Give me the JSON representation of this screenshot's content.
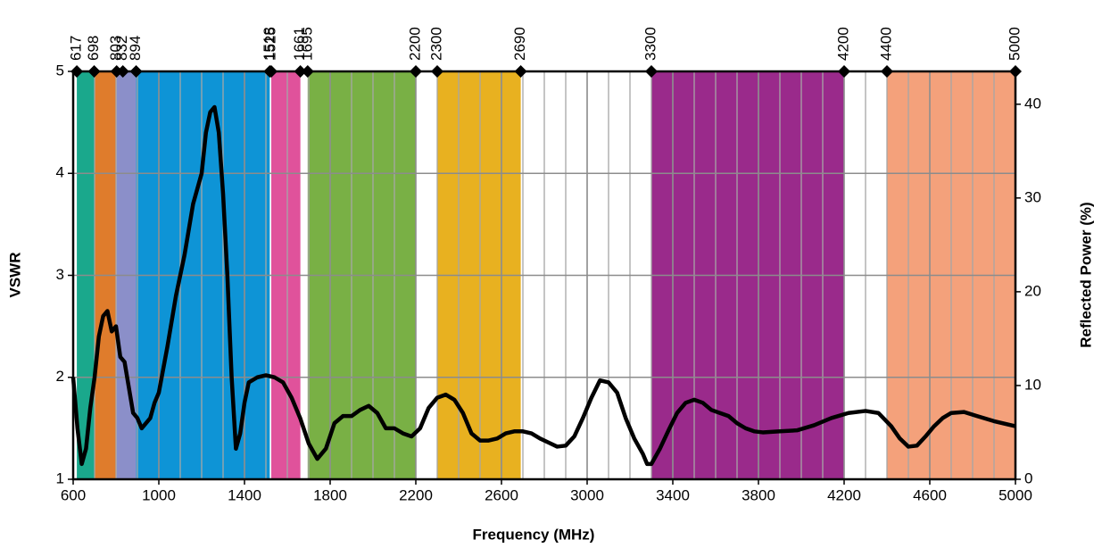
{
  "chart_data": {
    "type": "line",
    "xlabel": "Frequency (MHz)",
    "ylabel": "VSWR",
    "y2label": "Reflected Power (%)",
    "xlim": [
      600,
      5000
    ],
    "xticks": [
      600,
      1000,
      1400,
      1800,
      2200,
      2600,
      3000,
      3400,
      3800,
      4200,
      4600,
      5000
    ],
    "ylim": [
      1,
      5
    ],
    "yticks": [
      1,
      2,
      3,
      4,
      5
    ],
    "y2lim": [
      0,
      43.5
    ],
    "y2ticks": [
      0,
      10,
      20,
      30,
      40
    ],
    "grid": true,
    "xgrid_minor": 100,
    "markers": [
      617,
      698,
      803,
      832,
      894,
      1518,
      1525,
      1661,
      1695,
      2200,
      2300,
      2690,
      3300,
      4200,
      4400,
      5000
    ],
    "bands": [
      {
        "start": 617,
        "end": 698,
        "color": "#1aa88c"
      },
      {
        "start": 698,
        "end": 803,
        "color": "#df7c2c"
      },
      {
        "start": 803,
        "end": 894,
        "color": "#8b8fc9"
      },
      {
        "start": 894,
        "end": 1518,
        "color": "#0e94d6"
      },
      {
        "start": 1525,
        "end": 1661,
        "color": "#e0529b"
      },
      {
        "start": 1695,
        "end": 2200,
        "color": "#79b045"
      },
      {
        "start": 2300,
        "end": 2690,
        "color": "#e8b120"
      },
      {
        "start": 3300,
        "end": 4200,
        "color": "#9a2a8b"
      },
      {
        "start": 4400,
        "end": 5000,
        "color": "#f4a17b"
      }
    ],
    "x": [
      600,
      620,
      640,
      660,
      680,
      700,
      720,
      740,
      760,
      780,
      800,
      820,
      840,
      860,
      880,
      900,
      920,
      940,
      960,
      980,
      1000,
      1040,
      1080,
      1120,
      1160,
      1200,
      1220,
      1240,
      1260,
      1280,
      1300,
      1320,
      1340,
      1360,
      1380,
      1400,
      1420,
      1460,
      1500,
      1540,
      1580,
      1620,
      1660,
      1700,
      1740,
      1780,
      1820,
      1860,
      1900,
      1940,
      1980,
      2020,
      2060,
      2100,
      2140,
      2180,
      2220,
      2260,
      2300,
      2340,
      2380,
      2420,
      2460,
      2500,
      2540,
      2580,
      2620,
      2660,
      2700,
      2740,
      2780,
      2820,
      2860,
      2900,
      2940,
      2980,
      3020,
      3060,
      3100,
      3140,
      3180,
      3220,
      3260,
      3280,
      3300,
      3340,
      3380,
      3420,
      3460,
      3500,
      3540,
      3580,
      3620,
      3660,
      3700,
      3740,
      3780,
      3820,
      3900,
      3980,
      4060,
      4140,
      4220,
      4300,
      4360,
      4420,
      4460,
      4500,
      4540,
      4580,
      4620,
      4660,
      4700,
      4760,
      4820,
      4900,
      4960,
      5000
    ],
    "series": [
      {
        "color": "#000000",
        "values": [
          2.0,
          1.5,
          1.15,
          1.3,
          1.7,
          2.0,
          2.4,
          2.6,
          2.65,
          2.45,
          2.5,
          2.2,
          2.15,
          1.9,
          1.65,
          1.6,
          1.5,
          1.55,
          1.6,
          1.75,
          1.85,
          2.3,
          2.8,
          3.2,
          3.7,
          4.0,
          4.4,
          4.6,
          4.65,
          4.4,
          3.8,
          3.0,
          2.0,
          1.3,
          1.45,
          1.75,
          1.95,
          2.0,
          2.02,
          2.0,
          1.95,
          1.8,
          1.6,
          1.35,
          1.2,
          1.3,
          1.55,
          1.62,
          1.62,
          1.68,
          1.72,
          1.65,
          1.5,
          1.5,
          1.45,
          1.42,
          1.5,
          1.7,
          1.8,
          1.83,
          1.78,
          1.65,
          1.45,
          1.38,
          1.38,
          1.4,
          1.45,
          1.47,
          1.47,
          1.45,
          1.4,
          1.36,
          1.32,
          1.33,
          1.42,
          1.6,
          1.8,
          1.97,
          1.95,
          1.85,
          1.6,
          1.4,
          1.25,
          1.15,
          1.15,
          1.3,
          1.48,
          1.65,
          1.75,
          1.78,
          1.75,
          1.68,
          1.65,
          1.62,
          1.55,
          1.5,
          1.47,
          1.46,
          1.47,
          1.48,
          1.53,
          1.6,
          1.65,
          1.67,
          1.65,
          1.52,
          1.4,
          1.32,
          1.33,
          1.42,
          1.52,
          1.6,
          1.65,
          1.66,
          1.62,
          1.57,
          1.54,
          1.52
        ]
      }
    ]
  }
}
